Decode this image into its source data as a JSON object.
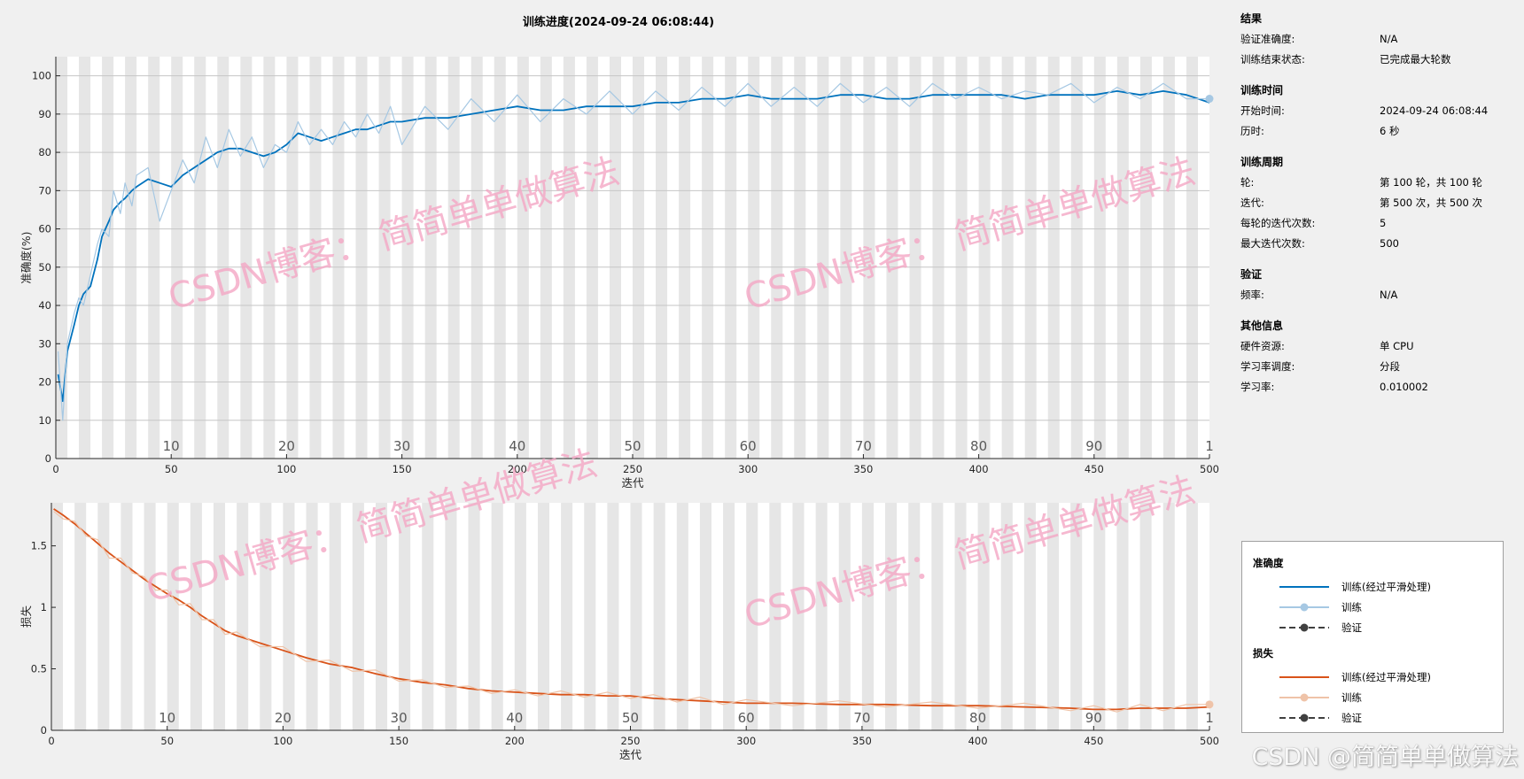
{
  "title": "训练进度(2024-09-24 06:08:44)",
  "chart_data": [
    {
      "type": "line",
      "name": "accuracy",
      "ylabel": "准确度(%)",
      "xlabel": "迭代",
      "xlim": [
        0,
        500
      ],
      "ylim": [
        0,
        105
      ],
      "xticks": [
        0,
        50,
        100,
        150,
        200,
        250,
        300,
        350,
        400,
        450,
        500
      ],
      "yticks": [
        0,
        10,
        20,
        30,
        40,
        50,
        60,
        70,
        80,
        90,
        100
      ],
      "epoch_labels": [
        "10",
        "20",
        "30",
        "40",
        "50",
        "60",
        "70",
        "80",
        "90",
        "1"
      ],
      "grid": true,
      "series": [
        {
          "name": "训练(经过平滑处理)",
          "color": "#0072bd",
          "x": [
            1,
            3,
            5,
            8,
            10,
            12,
            15,
            18,
            20,
            23,
            25,
            28,
            30,
            33,
            35,
            40,
            45,
            50,
            55,
            60,
            65,
            70,
            75,
            80,
            85,
            90,
            95,
            100,
            105,
            110,
            115,
            120,
            125,
            130,
            135,
            140,
            145,
            150,
            160,
            170,
            180,
            190,
            200,
            210,
            220,
            230,
            240,
            250,
            260,
            270,
            280,
            290,
            300,
            310,
            320,
            330,
            340,
            350,
            360,
            370,
            380,
            390,
            400,
            410,
            420,
            430,
            440,
            450,
            460,
            470,
            480,
            490,
            500
          ],
          "y": [
            22,
            15,
            28,
            35,
            40,
            43,
            45,
            52,
            58,
            62,
            65,
            67,
            68,
            70,
            71,
            73,
            72,
            71,
            74,
            76,
            78,
            80,
            81,
            81,
            80,
            79,
            80,
            82,
            85,
            84,
            83,
            84,
            85,
            86,
            86,
            87,
            88,
            88,
            89,
            89,
            90,
            91,
            92,
            91,
            91,
            92,
            92,
            92,
            93,
            93,
            94,
            94,
            95,
            94,
            94,
            94,
            95,
            95,
            94,
            94,
            95,
            95,
            95,
            95,
            94,
            95,
            95,
            95,
            96,
            95,
            96,
            95,
            93
          ]
        },
        {
          "name": "训练",
          "color": "#a6c8e3",
          "x": [
            1,
            3,
            5,
            8,
            10,
            12,
            15,
            18,
            20,
            23,
            25,
            28,
            30,
            33,
            35,
            40,
            45,
            50,
            55,
            60,
            65,
            70,
            75,
            80,
            85,
            90,
            95,
            100,
            105,
            110,
            115,
            120,
            125,
            130,
            135,
            140,
            145,
            150,
            160,
            170,
            180,
            190,
            200,
            210,
            220,
            230,
            240,
            250,
            260,
            270,
            280,
            290,
            300,
            310,
            320,
            330,
            340,
            350,
            360,
            370,
            380,
            390,
            400,
            410,
            420,
            430,
            440,
            450,
            460,
            470,
            480,
            490,
            500
          ],
          "y": [
            28,
            10,
            30,
            38,
            42,
            40,
            48,
            56,
            60,
            58,
            70,
            64,
            72,
            66,
            74,
            76,
            62,
            70,
            78,
            72,
            84,
            76,
            86,
            79,
            84,
            76,
            82,
            80,
            88,
            82,
            86,
            82,
            88,
            84,
            90,
            85,
            92,
            82,
            92,
            86,
            94,
            88,
            95,
            88,
            94,
            90,
            96,
            90,
            96,
            91,
            97,
            92,
            98,
            92,
            97,
            92,
            98,
            93,
            97,
            92,
            98,
            94,
            97,
            94,
            96,
            95,
            98,
            93,
            97,
            94,
            98,
            94,
            94
          ]
        }
      ]
    },
    {
      "type": "line",
      "name": "loss",
      "ylabel": "损失",
      "xlabel": "迭代",
      "xlim": [
        0,
        500
      ],
      "ylim": [
        0,
        1.85
      ],
      "xticks": [
        0,
        50,
        100,
        150,
        200,
        250,
        300,
        350,
        400,
        450,
        500
      ],
      "yticks": [
        0,
        0.5,
        1,
        1.5
      ],
      "ytick_labels": [
        "0",
        "0.5",
        "1",
        "1.5"
      ],
      "epoch_labels": [
        "10",
        "20",
        "30",
        "40",
        "50",
        "60",
        "70",
        "80",
        "90",
        "1"
      ],
      "grid": false,
      "series": [
        {
          "name": "训练(经过平滑处理)",
          "color": "#d95319",
          "x": [
            1,
            5,
            10,
            15,
            20,
            25,
            30,
            35,
            40,
            45,
            50,
            55,
            60,
            65,
            70,
            75,
            80,
            90,
            100,
            110,
            120,
            130,
            140,
            150,
            160,
            170,
            180,
            190,
            200,
            210,
            220,
            230,
            240,
            250,
            260,
            270,
            280,
            290,
            300,
            320,
            340,
            360,
            380,
            400,
            420,
            440,
            450,
            460,
            470,
            480,
            490,
            500
          ],
          "y": [
            1.8,
            1.75,
            1.68,
            1.6,
            1.52,
            1.44,
            1.37,
            1.3,
            1.23,
            1.17,
            1.11,
            1.06,
            1.0,
            0.93,
            0.87,
            0.81,
            0.77,
            0.71,
            0.65,
            0.59,
            0.54,
            0.51,
            0.46,
            0.42,
            0.39,
            0.37,
            0.34,
            0.32,
            0.31,
            0.3,
            0.29,
            0.29,
            0.28,
            0.28,
            0.26,
            0.25,
            0.24,
            0.23,
            0.22,
            0.22,
            0.21,
            0.21,
            0.2,
            0.2,
            0.19,
            0.18,
            0.17,
            0.17,
            0.18,
            0.18,
            0.18,
            0.19
          ]
        },
        {
          "name": "训练",
          "color": "#efc3a8",
          "x": [
            1,
            5,
            10,
            15,
            20,
            25,
            30,
            35,
            40,
            45,
            50,
            55,
            60,
            65,
            70,
            75,
            80,
            90,
            100,
            110,
            120,
            130,
            140,
            150,
            160,
            170,
            180,
            190,
            200,
            210,
            220,
            230,
            240,
            250,
            260,
            270,
            280,
            290,
            300,
            320,
            340,
            360,
            380,
            400,
            420,
            440,
            450,
            460,
            470,
            480,
            490,
            500
          ],
          "y": [
            1.78,
            1.72,
            1.7,
            1.58,
            1.55,
            1.4,
            1.4,
            1.28,
            1.25,
            1.14,
            1.14,
            1.02,
            1.03,
            0.9,
            0.9,
            0.78,
            0.8,
            0.68,
            0.68,
            0.56,
            0.57,
            0.48,
            0.49,
            0.4,
            0.41,
            0.35,
            0.36,
            0.3,
            0.33,
            0.28,
            0.32,
            0.27,
            0.31,
            0.26,
            0.29,
            0.23,
            0.27,
            0.21,
            0.25,
            0.2,
            0.24,
            0.19,
            0.23,
            0.18,
            0.22,
            0.16,
            0.2,
            0.15,
            0.21,
            0.16,
            0.21,
            0.21
          ]
        }
      ]
    }
  ],
  "info": {
    "results": {
      "title": "结果",
      "rows": [
        {
          "label": "验证准确度:",
          "value": "N/A"
        },
        {
          "label": "训练结束状态:",
          "value": "已完成最大轮数"
        }
      ]
    },
    "time": {
      "title": "训练时间",
      "rows": [
        {
          "label": "开始时间:",
          "value": "2024-09-24 06:08:44"
        },
        {
          "label": "历时:",
          "value": "6 秒"
        }
      ]
    },
    "cycle": {
      "title": "训练周期",
      "rows": [
        {
          "label": "轮:",
          "value": "第 100 轮，共 100 轮"
        },
        {
          "label": "迭代:",
          "value": "第 500 次，共 500 次"
        },
        {
          "label": "每轮的迭代次数:",
          "value": "5"
        },
        {
          "label": "最大迭代次数:",
          "value": "500"
        }
      ]
    },
    "validation": {
      "title": "验证",
      "rows": [
        {
          "label": "频率:",
          "value": "N/A"
        }
      ]
    },
    "other": {
      "title": "其他信息",
      "rows": [
        {
          "label": "硬件资源:",
          "value": "单 CPU"
        },
        {
          "label": "学习率调度:",
          "value": "分段"
        },
        {
          "label": "学习率:",
          "value": "0.010002"
        }
      ]
    }
  },
  "legend": {
    "accuracy": {
      "title": "准确度",
      "items": [
        "训练(经过平滑处理)",
        "训练",
        "验证"
      ]
    },
    "loss": {
      "title": "损失",
      "items": [
        "训练(经过平滑处理)",
        "训练",
        "验证"
      ]
    }
  },
  "colors": {
    "acc_smooth": "#0072bd",
    "acc_raw": "#a6c8e3",
    "loss_smooth": "#d95319",
    "loss_raw": "#efc3a8",
    "validation": "#404040",
    "epoch_band": "#e6e6e6",
    "watermark": "#f4a6c4"
  },
  "watermark": {
    "text": "CSDN博客：  简简单单做算法",
    "footer": "CSDN @简简单单做算法"
  }
}
